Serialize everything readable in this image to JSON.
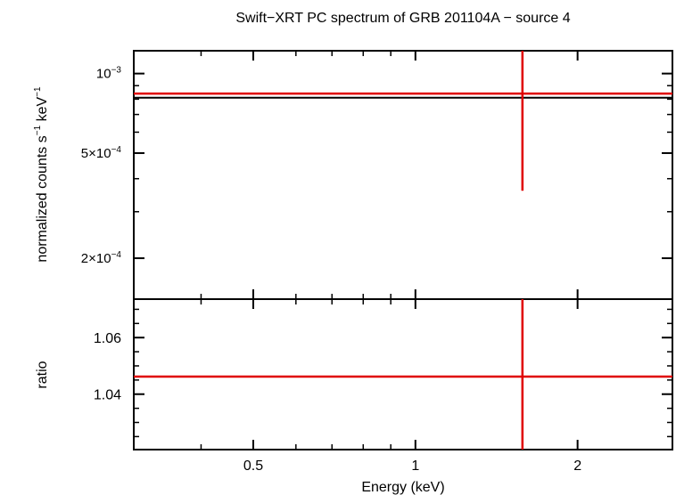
{
  "chart_data": [
    {
      "type": "line",
      "title": "Swift−XRT PC spectrum of GRB 201104A − source 4",
      "xlabel": "",
      "ylabel_main": "normalized counts s",
      "ylabel_sup1": "−1",
      "ylabel_mid": " keV",
      "ylabel_sup2": "−1",
      "x_scale": "log",
      "y_scale": "log",
      "xlim": [
        0.3,
        3.0
      ],
      "ylim": [
        0.00014,
        0.00122
      ],
      "yticks": [
        {
          "value": 0.001,
          "base": "10",
          "exp": "−3"
        },
        {
          "value": 0.0005,
          "base": "5×10",
          "exp": "−4"
        },
        {
          "value": 0.0002,
          "base": "2×10",
          "exp": "−4"
        }
      ],
      "series": [
        {
          "kind": "data",
          "color": "#e00000",
          "x": 1.58,
          "x_err": [
            0.3,
            3.0
          ],
          "y": 0.00084,
          "y_err": [
            0.00036,
            0.00122
          ]
        },
        {
          "kind": "model",
          "color": "#000000",
          "x": [
            0.3,
            3.0
          ],
          "y": [
            0.00081,
            0.00081
          ]
        }
      ]
    },
    {
      "type": "line",
      "xlabel": "Energy (keV)",
      "ylabel": "ratio",
      "x_scale": "log",
      "xlim": [
        0.3,
        3.0
      ],
      "ylim": [
        1.0204,
        1.0736
      ],
      "xticks": [
        {
          "value": 0.5,
          "label": "0.5"
        },
        {
          "value": 1,
          "label": "1"
        },
        {
          "value": 2,
          "label": "2"
        }
      ],
      "yticks": [
        {
          "value": 1.04,
          "label": "1.04"
        },
        {
          "value": 1.06,
          "label": "1.06"
        }
      ],
      "series": [
        {
          "kind": "ratio",
          "color": "#e00000",
          "x": 1.58,
          "x_err": [
            0.3,
            3.0
          ],
          "y": 1.0462,
          "y_err": [
            1.0204,
            1.0736
          ]
        }
      ]
    }
  ]
}
